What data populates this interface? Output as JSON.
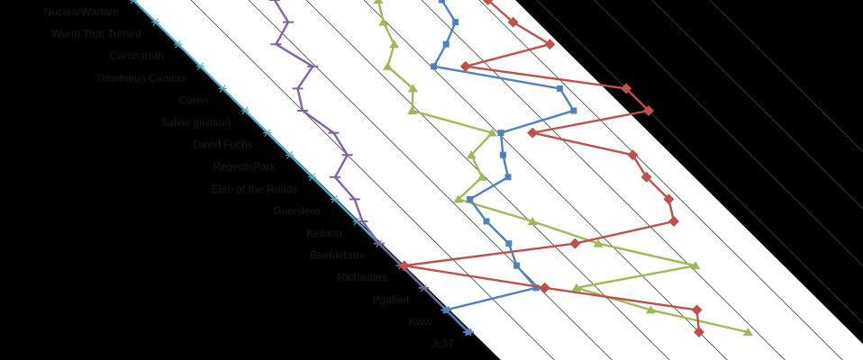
{
  "chart_data": {
    "type": "line",
    "title": "",
    "xlabel": "",
    "ylabel": "",
    "grid": true,
    "categories": [
      "NuclearWarfare",
      "Worm That Turned",
      "Carcharoth",
      "Timotheus Canens",
      "Coren",
      "Salvio giuliano",
      "David Fuchs",
      "RegentsPark",
      "Elen of the Roads",
      "Guerillero",
      "Keilana",
      "Beeblebrox",
      "Richwales",
      "Pgallert",
      "Kww",
      "Jc37"
    ],
    "series": [
      {
        "color": "#4bacc6",
        "marker": "asterisk",
        "values": [
          0,
          0,
          0,
          0,
          0,
          0,
          0,
          0,
          0,
          0,
          0,
          0,
          0,
          0,
          0,
          0
        ]
      },
      {
        "color": "#8064a2",
        "marker": "dash",
        "values": [
          4.9,
          4.6,
          3.4,
          3.9,
          2.6,
          2.0,
          2.3,
          2.0,
          0.8,
          0.7,
          0.2,
          0.0,
          0.0,
          0.0,
          0.0,
          0.0
        ]
      },
      {
        "color": "#9bbb59",
        "marker": "triangle",
        "values": [
          8.5,
          7.9,
          7.5,
          6.5,
          6.6,
          5.8,
          7.8,
          6.3,
          5.9,
          4.3,
          6.1,
          7.6,
          10.2,
          5.3,
          7.1,
          9.7
        ]
      },
      {
        "color": "#4f81bd",
        "marker": "square",
        "values": [
          10.7,
          10.4,
          9.3,
          8.1,
          11.7,
          11.4,
          8.1,
          7.4,
          6.8,
          4.7,
          4.5,
          4.5,
          4.0,
          3.9,
          0.0,
          0.0
        ]
      },
      {
        "color": "#c0504d",
        "marker": "diamond",
        "values": [
          12.3,
          12.4,
          12.9,
          9.2,
          14.0,
          14.0,
          9.2,
          11.9,
          11.6,
          11.6,
          11.0,
          6.8,
          0.1,
          4.2,
          8.7,
          8.0
        ]
      }
    ]
  },
  "colors": {
    "background": "#000000",
    "plot_area": "#ffffff",
    "gridline": "#404040",
    "label_text": "#1a1a1a"
  }
}
